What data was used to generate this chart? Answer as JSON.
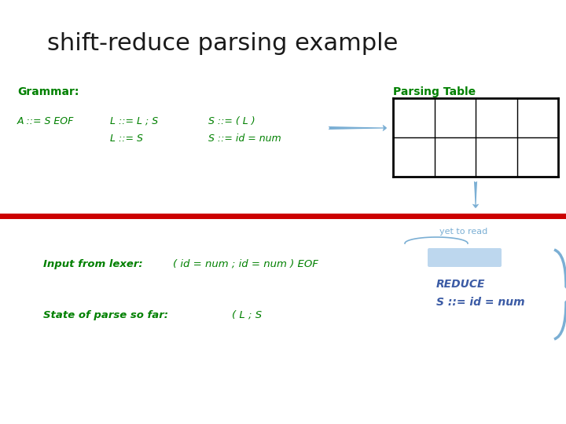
{
  "title": "shift-reduce parsing example",
  "title_color": "#1a1a1a",
  "title_fontsize": 22,
  "grammar_label": "Grammar:",
  "parsing_table_label": "Parsing Table",
  "green_color": "#008000",
  "blue_color": "#3B5BA5",
  "light_blue": "#7BAFD4",
  "grammar_line1": "A ::= S EOF",
  "grammar_line2": "L ::= L ; S",
  "grammar_line3": "L ::= S",
  "grammar_s1": "S ::= ( L )",
  "grammar_s2": "S ::= id = num",
  "arrow_color": "#7BAFD4",
  "input_label": "Input from lexer:",
  "input_text": "( id = num ; id = num ) EOF",
  "yet_to_read": "yet to read",
  "state_label": "State of parse so far:",
  "state_text": "( L ; S",
  "reduce_line1": "REDUCE",
  "reduce_line2": "S ::= id = num",
  "background_color": "#ffffff"
}
